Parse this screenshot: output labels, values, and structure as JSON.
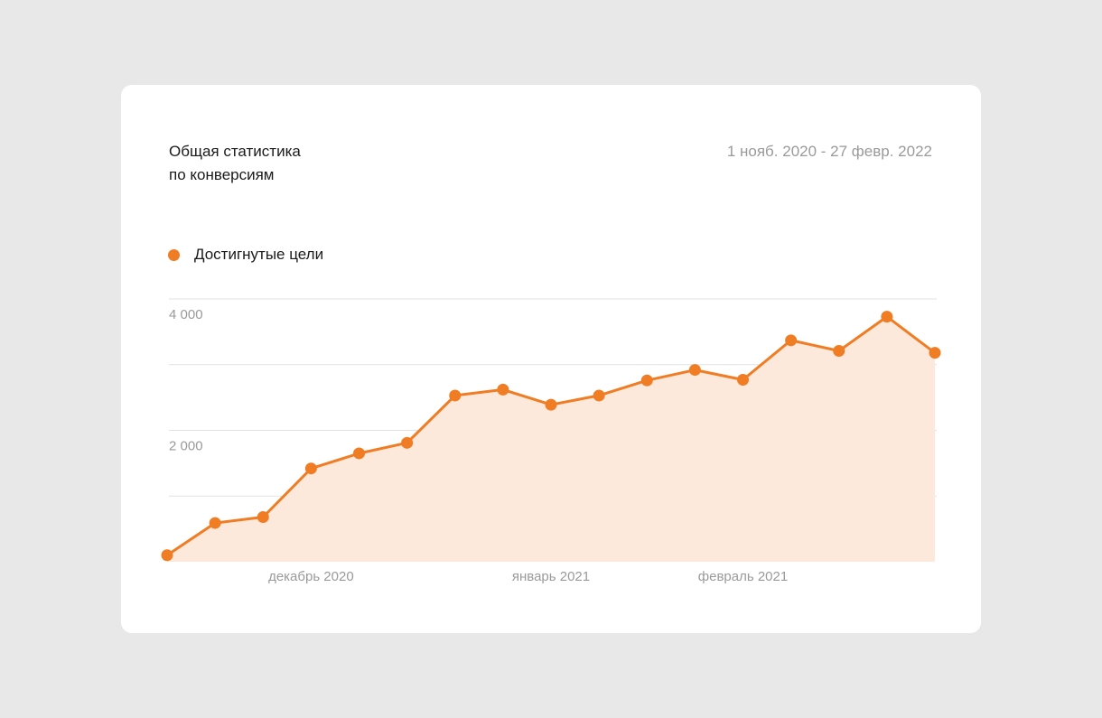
{
  "card": {
    "title_line1": "Общая статистика",
    "title_line2": "по конверсиям",
    "date_range": "1 нояб. 2020 - 27 февр. 2022"
  },
  "colors": {
    "background": "#e8e8e8",
    "card": "#ffffff",
    "series_line": "#f07c24",
    "series_fill": "#fde9dc",
    "grid": "#e2e2e2",
    "muted_text": "#9a9a9a"
  },
  "chart_data": {
    "type": "area",
    "title": "Общая статистика по конверсиям",
    "subtitle": "1 нояб. 2020 - 27 февр. 2022",
    "legend_position": "top-left",
    "grid": true,
    "y_ticks": [
      {
        "value": 4000,
        "label": "4 000"
      },
      {
        "value": 2000,
        "label": "2 000"
      }
    ],
    "y_gridlines": [
      1000,
      2000,
      3000,
      4000
    ],
    "ylim": [
      0,
      4000
    ],
    "x_range": [
      0,
      16
    ],
    "x_ticks": [
      {
        "position": 3,
        "label": "декабрь 2020"
      },
      {
        "position": 8,
        "label": "январь 2021"
      },
      {
        "position": 12,
        "label": "февраль 2021"
      }
    ],
    "series": [
      {
        "name": "Достигнутые цели",
        "values": [
          100,
          590,
          680,
          1420,
          1650,
          1810,
          2530,
          2620,
          2390,
          2530,
          2760,
          2920,
          2770,
          3370,
          3210,
          3730,
          3180
        ]
      }
    ]
  }
}
